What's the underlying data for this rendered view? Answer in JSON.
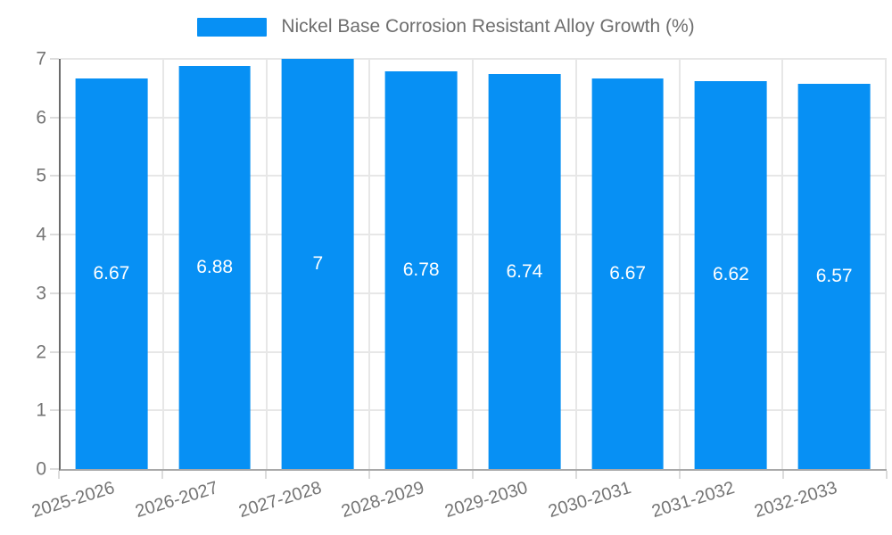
{
  "chart_data": {
    "type": "bar",
    "legend": "Nickel Base Corrosion Resistant Alloy Growth (%)",
    "title": "",
    "xlabel": "",
    "ylabel": "",
    "categories": [
      "2025-2026",
      "2026-2027",
      "2027-2028",
      "2028-2029",
      "2029-2030",
      "2030-2031",
      "2031-2032",
      "2032-2033"
    ],
    "values": [
      6.67,
      6.88,
      7,
      6.78,
      6.74,
      6.67,
      6.62,
      6.57
    ],
    "ylim": [
      0,
      7
    ],
    "yticks": [
      0,
      1,
      2,
      3,
      4,
      5,
      6,
      7
    ],
    "grid": "on",
    "legend_position": "top",
    "bar_color": "#0790f4",
    "value_label_color": "#ffffff",
    "tick_label_color": "#757575",
    "legend_text_color": "#6e6e6e",
    "gridline_color": "#e7e7e7",
    "yaxis_line_color": "#6b6b6b",
    "xaxis_line_color": "#a9a9a9"
  }
}
